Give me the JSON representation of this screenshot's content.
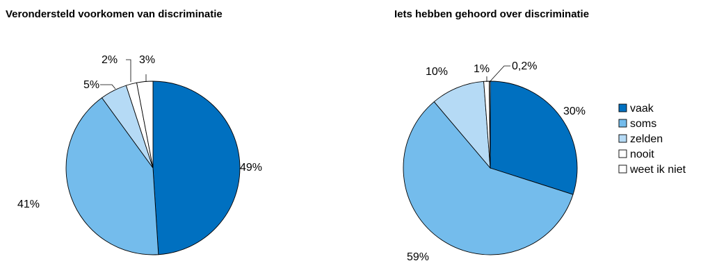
{
  "chart_data": [
    {
      "type": "pie",
      "title": "Verondersteld voorkomen van discriminatie",
      "categories": [
        "vaak",
        "soms",
        "zelden",
        "nooit",
        "weet ik niet"
      ],
      "values": [
        49,
        41,
        5,
        2,
        3
      ],
      "labels": [
        "49%",
        "41%",
        "5%",
        "2%",
        "3%"
      ],
      "colors": [
        "#0070c0",
        "#74bcec",
        "#b5daf5",
        "#ffffff",
        "#ffffff"
      ]
    },
    {
      "type": "pie",
      "title": "Iets hebben gehoord over discriminatie",
      "categories": [
        "vaak",
        "soms",
        "zelden",
        "nooit",
        "weet ik niet"
      ],
      "values": [
        30,
        59,
        10,
        1,
        0.2
      ],
      "labels": [
        "30%",
        "59%",
        "10%",
        "1%",
        "0,2%"
      ],
      "colors": [
        "#0070c0",
        "#74bcec",
        "#b5daf5",
        "#ffffff",
        "#ffffff"
      ]
    }
  ],
  "legend": {
    "placement": "right",
    "items": [
      {
        "label": "vaak",
        "color": "#0070c0"
      },
      {
        "label": "soms",
        "color": "#74bcec"
      },
      {
        "label": "zelden",
        "color": "#b5daf5"
      },
      {
        "label": "nooit",
        "color": "#ffffff"
      },
      {
        "label": "weet ik niet",
        "color": "#ffffff"
      }
    ]
  }
}
